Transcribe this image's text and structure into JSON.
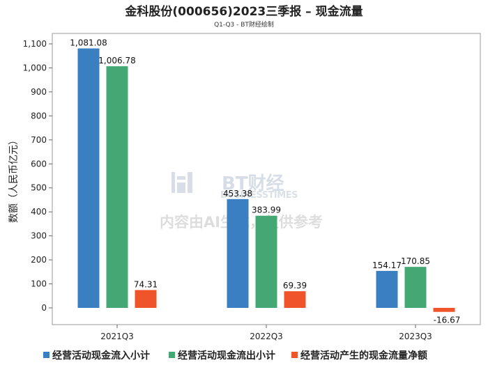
{
  "chart_data": {
    "type": "bar",
    "title": "金科股份(000656)2023三季报 – 现金流量",
    "subtitle": "Q1-Q3 - BT财经绘制",
    "ylabel": "数额（人民币亿元）",
    "xlabel": "",
    "categories": [
      "2021Q3",
      "2022Q3",
      "2023Q3"
    ],
    "ylim": [
      -50,
      1150
    ],
    "yticks": [
      0,
      100,
      200,
      300,
      400,
      500,
      600,
      700,
      800,
      900,
      1000,
      1100
    ],
    "ytick_labels": [
      "0",
      "100",
      "200",
      "300",
      "400",
      "500",
      "600",
      "700",
      "800",
      "900",
      "1,000",
      "1,100"
    ],
    "series": [
      {
        "name": "经营活动现金流入小计",
        "color": "#3a7fc1",
        "values": [
          1081.08,
          453.38,
          154.17
        ],
        "labels": [
          "1,081.08",
          "453.38",
          "154.17"
        ]
      },
      {
        "name": "经营活动现金流出小计",
        "color": "#45a874",
        "values": [
          1006.78,
          383.99,
          170.85
        ],
        "labels": [
          "1,006.78",
          "383.99",
          "170.85"
        ]
      },
      {
        "name": "经营活动产生的现金流量净额",
        "color": "#f0542a",
        "values": [
          74.31,
          69.39,
          -16.67
        ],
        "labels": [
          "74.31",
          "69.39",
          "-16.67"
        ]
      }
    ],
    "legend_position": "bottom",
    "grid": false
  },
  "watermark": {
    "logo_text": "BT财经",
    "logo_sub": "BUSINESSTIMES",
    "notice": "内容由AI生成，仅供参考"
  }
}
